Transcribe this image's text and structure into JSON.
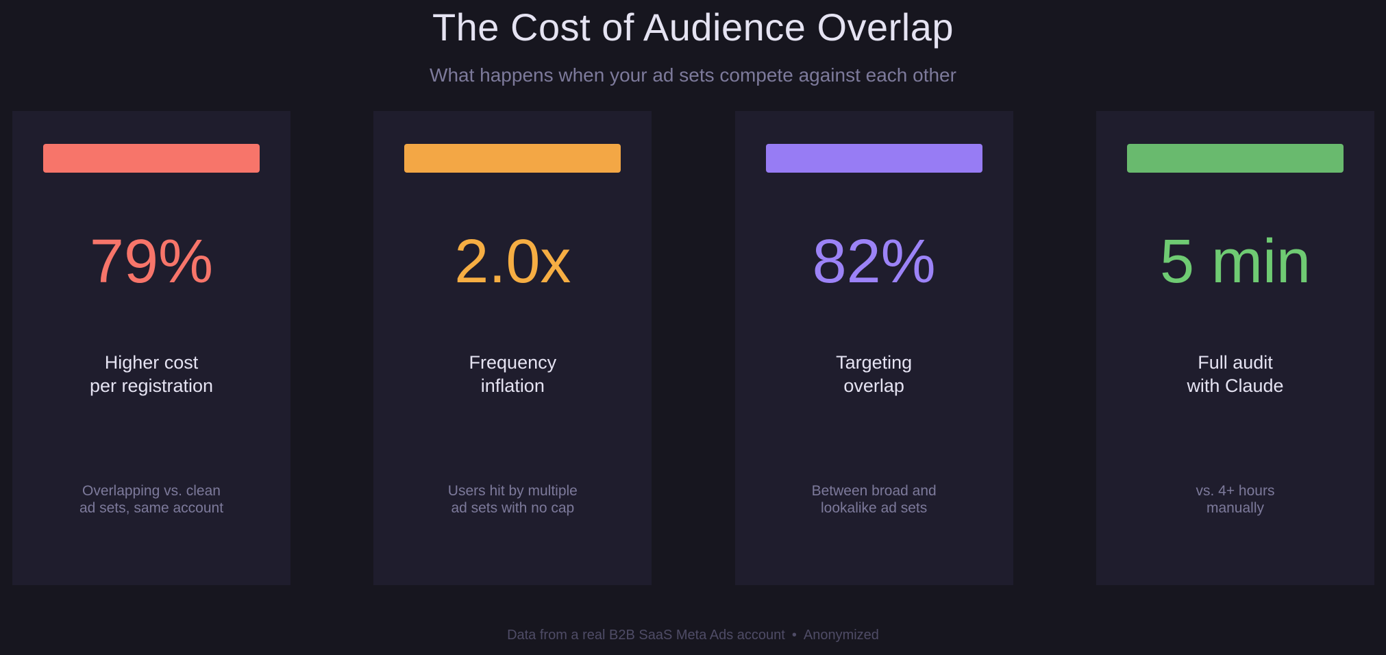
{
  "header": {
    "title": "The Cost of Audience Overlap",
    "subtitle": "What happens when your ad sets compete against each other"
  },
  "cards": [
    {
      "stat": "79%",
      "label_lines": [
        "Higher cost",
        "per registration"
      ],
      "note_lines": [
        "Overlapping vs. clean",
        "ad sets, same account"
      ],
      "bar_color": "#f7756a",
      "stat_color": "#f7756a"
    },
    {
      "stat": "2.0x",
      "label_lines": [
        "Frequency",
        "inflation"
      ],
      "note_lines": [
        "Users hit by multiple",
        "ad sets with no cap"
      ],
      "bar_color": "#f3a745",
      "stat_color": "#f6ae43"
    },
    {
      "stat": "82%",
      "label_lines": [
        "Targeting",
        "overlap"
      ],
      "note_lines": [
        "Between broad and",
        "lookalike ad sets"
      ],
      "bar_color": "#977cf4",
      "stat_color": "#9c83f7"
    },
    {
      "stat": "5 min",
      "label_lines": [
        "Full audit",
        "with Claude"
      ],
      "note_lines": [
        "vs. 4+ hours",
        "manually"
      ],
      "bar_color": "#69ba6e",
      "stat_color": "#6fcb73"
    }
  ],
  "footer": {
    "source": "Data from a real B2B SaaS Meta Ads account",
    "separator": "•",
    "status": "Anonymized"
  }
}
